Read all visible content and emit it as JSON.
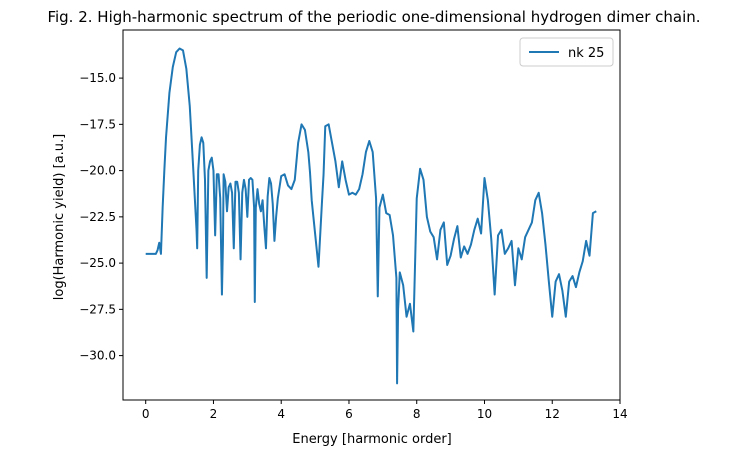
{
  "chart_data": {
    "type": "line",
    "title": "Fig. 2. High-harmonic spectrum of the periodic one-dimensional hydrogen dimer chain.",
    "xlabel": "Energy [harmonic order]",
    "ylabel": "log(Harmonic yield) [a.u.]",
    "xlim": [
      -0.67,
      14.0
    ],
    "ylim": [
      -32.4,
      -12.4
    ],
    "xticks": [
      0,
      2,
      4,
      6,
      8,
      10,
      12,
      14
    ],
    "xtick_labels": [
      "0",
      "2",
      "4",
      "6",
      "8",
      "10",
      "12",
      "14"
    ],
    "yticks": [
      -30.0,
      -27.5,
      -25.0,
      -22.5,
      -20.0,
      -17.5,
      -15.0
    ],
    "ytick_labels": [
      "−30.0",
      "−27.5",
      "−25.0",
      "−22.5",
      "−20.0",
      "−17.5",
      "−15.0"
    ],
    "grid": false,
    "legend_position": "top-right",
    "colors": {
      "series": "#1f77b4"
    },
    "series": [
      {
        "name": "nk 25",
        "x": [
          0.0,
          0.1,
          0.2,
          0.3,
          0.35,
          0.4,
          0.45,
          0.5,
          0.55,
          0.6,
          0.7,
          0.8,
          0.9,
          1.0,
          1.1,
          1.2,
          1.3,
          1.4,
          1.5,
          1.52,
          1.55,
          1.6,
          1.65,
          1.7,
          1.75,
          1.8,
          1.85,
          1.9,
          1.95,
          2.0,
          2.05,
          2.1,
          2.15,
          2.2,
          2.25,
          2.28,
          2.3,
          2.35,
          2.4,
          2.45,
          2.5,
          2.55,
          2.6,
          2.65,
          2.7,
          2.75,
          2.8,
          2.85,
          2.9,
          2.95,
          3.0,
          3.05,
          3.1,
          3.15,
          3.2,
          3.22,
          3.25,
          3.3,
          3.35,
          3.4,
          3.45,
          3.5,
          3.55,
          3.6,
          3.65,
          3.7,
          3.75,
          3.8,
          3.85,
          3.9,
          4.0,
          4.1,
          4.2,
          4.3,
          4.4,
          4.5,
          4.6,
          4.7,
          4.8,
          4.85,
          4.9,
          5.0,
          5.1,
          5.2,
          5.25,
          5.3,
          5.4,
          5.5,
          5.6,
          5.7,
          5.8,
          5.9,
          6.0,
          6.1,
          6.2,
          6.3,
          6.4,
          6.5,
          6.6,
          6.7,
          6.8,
          6.85,
          6.9,
          7.0,
          7.1,
          7.2,
          7.3,
          7.4,
          7.42,
          7.45,
          7.5,
          7.6,
          7.7,
          7.8,
          7.9,
          8.0,
          8.1,
          8.2,
          8.3,
          8.4,
          8.5,
          8.6,
          8.7,
          8.8,
          8.9,
          9.0,
          9.1,
          9.2,
          9.3,
          9.4,
          9.5,
          9.6,
          9.7,
          9.8,
          9.9,
          10.0,
          10.1,
          10.2,
          10.3,
          10.4,
          10.5,
          10.6,
          10.7,
          10.8,
          10.9,
          11.0,
          11.1,
          11.2,
          11.3,
          11.4,
          11.5,
          11.6,
          11.7,
          11.8,
          11.9,
          12.0,
          12.1,
          12.2,
          12.3,
          12.4,
          12.5,
          12.6,
          12.7,
          12.8,
          12.9,
          13.0,
          13.1,
          13.2,
          13.3
        ],
        "values": [
          -24.5,
          -24.5,
          -24.5,
          -24.5,
          -24.3,
          -23.9,
          -24.5,
          -22.0,
          -20.0,
          -18.2,
          -15.8,
          -14.4,
          -13.6,
          -13.4,
          -13.5,
          -14.5,
          -16.5,
          -19.8,
          -23.2,
          -24.2,
          -20.0,
          -18.6,
          -18.2,
          -18.5,
          -20.5,
          -25.8,
          -20.0,
          -19.5,
          -19.3,
          -20.0,
          -23.5,
          -20.2,
          -20.2,
          -21.5,
          -26.7,
          -24.0,
          -20.2,
          -20.6,
          -22.2,
          -20.9,
          -20.7,
          -21.2,
          -24.2,
          -20.6,
          -20.6,
          -21.2,
          -24.8,
          -21.2,
          -20.5,
          -21.0,
          -22.5,
          -20.5,
          -20.4,
          -20.5,
          -22.0,
          -27.1,
          -22.0,
          -21.0,
          -21.8,
          -22.2,
          -21.6,
          -23.0,
          -24.2,
          -21.4,
          -20.4,
          -20.7,
          -21.8,
          -23.8,
          -22.5,
          -21.5,
          -20.3,
          -20.2,
          -20.8,
          -21.0,
          -20.5,
          -18.5,
          -17.5,
          -17.8,
          -19.0,
          -20.1,
          -21.6,
          -23.4,
          -25.2,
          -21.8,
          -20.2,
          -17.6,
          -17.5,
          -18.5,
          -19.5,
          -20.9,
          -19.5,
          -20.5,
          -21.3,
          -21.2,
          -21.3,
          -21.0,
          -20.2,
          -19.0,
          -18.4,
          -19.0,
          -21.5,
          -26.8,
          -22.0,
          -21.3,
          -22.3,
          -22.4,
          -23.5,
          -25.8,
          -31.5,
          -27.5,
          -25.5,
          -26.2,
          -27.9,
          -27.2,
          -28.7,
          -21.5,
          -19.9,
          -20.5,
          -22.5,
          -23.3,
          -23.6,
          -24.8,
          -23.2,
          -22.8,
          -25.1,
          -24.6,
          -23.7,
          -23.0,
          -24.7,
          -24.1,
          -24.5,
          -24.0,
          -23.2,
          -22.6,
          -23.4,
          -20.4,
          -21.6,
          -23.7,
          -26.7,
          -23.5,
          -23.2,
          -24.5,
          -24.2,
          -23.8,
          -26.2,
          -24.2,
          -24.8,
          -23.6,
          -23.2,
          -22.8,
          -21.6,
          -21.2,
          -22.3,
          -24.0,
          -26.0,
          -27.9,
          -26.0,
          -25.6,
          -26.5,
          -27.9,
          -26.0,
          -25.7,
          -26.3,
          -25.5,
          -24.9,
          -23.8,
          -24.6,
          -22.3,
          -22.2
        ]
      }
    ]
  }
}
